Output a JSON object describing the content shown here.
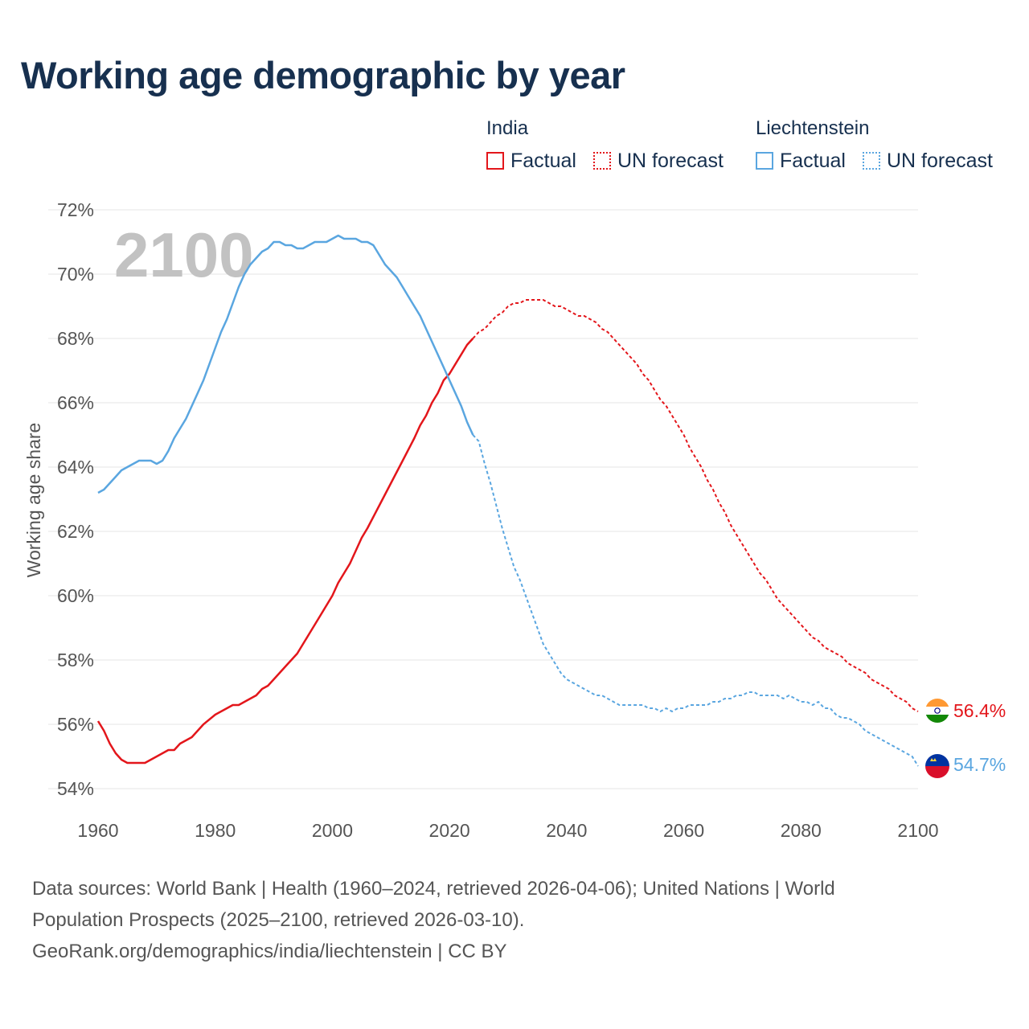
{
  "title": "Working age demographic by year",
  "legend": {
    "india": {
      "name": "India",
      "factual": "Factual",
      "forecast": "UN forecast"
    },
    "liechtenstein": {
      "name": "Liechtenstein",
      "factual": "Factual",
      "forecast": "UN forecast"
    }
  },
  "footer": {
    "line1": "Data sources: World Bank | Health (1960–2024, retrieved 2026-04-06); United Nations | World",
    "line2": "Population Prospects (2025–2100, retrieved 2026-03-10).",
    "line3": "GeoRank.org/demographics/india/liechtenstein | CC BY"
  },
  "colors": {
    "india": "#e3161b",
    "liechtenstein": "#5aa6e0",
    "grid": "#e6e6e6",
    "axis_text": "#555555",
    "year_label": "#c2c2c2"
  },
  "chart_data": {
    "type": "line",
    "title": "Working age demographic by year",
    "year_label": "2100",
    "xlabel": "",
    "ylabel": "Working age share",
    "xlim": [
      1960,
      2100
    ],
    "ylim": [
      54,
      72
    ],
    "x_ticks": [
      "1960",
      "1980",
      "2000",
      "2020",
      "2040",
      "2060",
      "2080",
      "2100"
    ],
    "y_ticks": [
      "54%",
      "56%",
      "58%",
      "60%",
      "62%",
      "64%",
      "66%",
      "68%",
      "70%",
      "72%"
    ],
    "forecast_start": 2024,
    "series": [
      {
        "name": "India",
        "end_label": "56.4%",
        "points": [
          [
            1960,
            56.1
          ],
          [
            1961,
            55.8
          ],
          [
            1962,
            55.4
          ],
          [
            1963,
            55.1
          ],
          [
            1964,
            54.9
          ],
          [
            1965,
            54.8
          ],
          [
            1966,
            54.8
          ],
          [
            1968,
            54.8
          ],
          [
            1970,
            55.0
          ],
          [
            1972,
            55.2
          ],
          [
            1973,
            55.2
          ],
          [
            1974,
            55.4
          ],
          [
            1976,
            55.6
          ],
          [
            1978,
            56.0
          ],
          [
            1980,
            56.3
          ],
          [
            1982,
            56.5
          ],
          [
            1983,
            56.6
          ],
          [
            1984,
            56.6
          ],
          [
            1986,
            56.8
          ],
          [
            1987,
            56.9
          ],
          [
            1988,
            57.1
          ],
          [
            1989,
            57.2
          ],
          [
            1990,
            57.4
          ],
          [
            1992,
            57.8
          ],
          [
            1994,
            58.2
          ],
          [
            1996,
            58.8
          ],
          [
            1998,
            59.4
          ],
          [
            2000,
            60.0
          ],
          [
            2001,
            60.4
          ],
          [
            2002,
            60.7
          ],
          [
            2003,
            61.0
          ],
          [
            2004,
            61.4
          ],
          [
            2005,
            61.8
          ],
          [
            2006,
            62.1
          ],
          [
            2008,
            62.8
          ],
          [
            2010,
            63.5
          ],
          [
            2012,
            64.2
          ],
          [
            2014,
            64.9
          ],
          [
            2015,
            65.3
          ],
          [
            2016,
            65.6
          ],
          [
            2017,
            66.0
          ],
          [
            2018,
            66.3
          ],
          [
            2019,
            66.7
          ],
          [
            2020,
            66.9
          ],
          [
            2021,
            67.2
          ],
          [
            2022,
            67.5
          ],
          [
            2023,
            67.8
          ],
          [
            2024,
            68.0
          ],
          [
            2025,
            68.2
          ],
          [
            2026,
            68.3
          ],
          [
            2027,
            68.5
          ],
          [
            2028,
            68.7
          ],
          [
            2029,
            68.8
          ],
          [
            2030,
            69.0
          ],
          [
            2031,
            69.1
          ],
          [
            2032,
            69.1
          ],
          [
            2033,
            69.2
          ],
          [
            2034,
            69.2
          ],
          [
            2035,
            69.2
          ],
          [
            2036,
            69.2
          ],
          [
            2037,
            69.1
          ],
          [
            2038,
            69.0
          ],
          [
            2039,
            69.0
          ],
          [
            2040,
            68.9
          ],
          [
            2041,
            68.8
          ],
          [
            2042,
            68.7
          ],
          [
            2043,
            68.7
          ],
          [
            2044,
            68.6
          ],
          [
            2045,
            68.5
          ],
          [
            2046,
            68.3
          ],
          [
            2047,
            68.2
          ],
          [
            2048,
            68.0
          ],
          [
            2049,
            67.8
          ],
          [
            2050,
            67.6
          ],
          [
            2051,
            67.4
          ],
          [
            2052,
            67.2
          ],
          [
            2053,
            66.9
          ],
          [
            2054,
            66.7
          ],
          [
            2055,
            66.4
          ],
          [
            2056,
            66.1
          ],
          [
            2057,
            65.9
          ],
          [
            2058,
            65.6
          ],
          [
            2059,
            65.3
          ],
          [
            2060,
            65.0
          ],
          [
            2061,
            64.6
          ],
          [
            2062,
            64.3
          ],
          [
            2063,
            64.0
          ],
          [
            2064,
            63.6
          ],
          [
            2065,
            63.3
          ],
          [
            2066,
            62.9
          ],
          [
            2067,
            62.6
          ],
          [
            2068,
            62.2
          ],
          [
            2069,
            61.9
          ],
          [
            2070,
            61.6
          ],
          [
            2071,
            61.3
          ],
          [
            2072,
            61.0
          ],
          [
            2073,
            60.7
          ],
          [
            2074,
            60.5
          ],
          [
            2075,
            60.2
          ],
          [
            2076,
            59.9
          ],
          [
            2077,
            59.7
          ],
          [
            2078,
            59.5
          ],
          [
            2079,
            59.3
          ],
          [
            2080,
            59.1
          ],
          [
            2081,
            58.9
          ],
          [
            2082,
            58.7
          ],
          [
            2083,
            58.6
          ],
          [
            2084,
            58.4
          ],
          [
            2085,
            58.3
          ],
          [
            2086,
            58.2
          ],
          [
            2087,
            58.1
          ],
          [
            2088,
            57.9
          ],
          [
            2089,
            57.8
          ],
          [
            2090,
            57.7
          ],
          [
            2091,
            57.6
          ],
          [
            2092,
            57.4
          ],
          [
            2093,
            57.3
          ],
          [
            2094,
            57.2
          ],
          [
            2095,
            57.1
          ],
          [
            2096,
            56.9
          ],
          [
            2097,
            56.8
          ],
          [
            2098,
            56.7
          ],
          [
            2099,
            56.5
          ],
          [
            2100,
            56.4
          ]
        ]
      },
      {
        "name": "Liechtenstein",
        "end_label": "54.7%",
        "points": [
          [
            1960,
            63.2
          ],
          [
            1961,
            63.3
          ],
          [
            1962,
            63.5
          ],
          [
            1963,
            63.7
          ],
          [
            1964,
            63.9
          ],
          [
            1965,
            64.0
          ],
          [
            1966,
            64.1
          ],
          [
            1967,
            64.2
          ],
          [
            1968,
            64.2
          ],
          [
            1969,
            64.2
          ],
          [
            1970,
            64.1
          ],
          [
            1971,
            64.2
          ],
          [
            1972,
            64.5
          ],
          [
            1973,
            64.9
          ],
          [
            1974,
            65.2
          ],
          [
            1975,
            65.5
          ],
          [
            1976,
            65.9
          ],
          [
            1977,
            66.3
          ],
          [
            1978,
            66.7
          ],
          [
            1979,
            67.2
          ],
          [
            1980,
            67.7
          ],
          [
            1981,
            68.2
          ],
          [
            1982,
            68.6
          ],
          [
            1983,
            69.1
          ],
          [
            1984,
            69.6
          ],
          [
            1985,
            70.0
          ],
          [
            1986,
            70.3
          ],
          [
            1987,
            70.5
          ],
          [
            1988,
            70.7
          ],
          [
            1989,
            70.8
          ],
          [
            1990,
            71.0
          ],
          [
            1991,
            71.0
          ],
          [
            1992,
            70.9
          ],
          [
            1993,
            70.9
          ],
          [
            1994,
            70.8
          ],
          [
            1995,
            70.8
          ],
          [
            1996,
            70.9
          ],
          [
            1997,
            71.0
          ],
          [
            1998,
            71.0
          ],
          [
            1999,
            71.0
          ],
          [
            2000,
            71.1
          ],
          [
            2001,
            71.2
          ],
          [
            2002,
            71.1
          ],
          [
            2003,
            71.1
          ],
          [
            2004,
            71.1
          ],
          [
            2005,
            71.0
          ],
          [
            2006,
            71.0
          ],
          [
            2007,
            70.9
          ],
          [
            2008,
            70.6
          ],
          [
            2009,
            70.3
          ],
          [
            2010,
            70.1
          ],
          [
            2011,
            69.9
          ],
          [
            2012,
            69.6
          ],
          [
            2013,
            69.3
          ],
          [
            2014,
            69.0
          ],
          [
            2015,
            68.7
          ],
          [
            2016,
            68.3
          ],
          [
            2017,
            67.9
          ],
          [
            2018,
            67.5
          ],
          [
            2019,
            67.1
          ],
          [
            2020,
            66.7
          ],
          [
            2021,
            66.3
          ],
          [
            2022,
            65.9
          ],
          [
            2023,
            65.4
          ],
          [
            2024,
            65.0
          ],
          [
            2025,
            64.8
          ],
          [
            2026,
            64.1
          ],
          [
            2027,
            63.5
          ],
          [
            2028,
            62.8
          ],
          [
            2029,
            62.1
          ],
          [
            2030,
            61.5
          ],
          [
            2031,
            60.9
          ],
          [
            2032,
            60.5
          ],
          [
            2033,
            60.0
          ],
          [
            2034,
            59.5
          ],
          [
            2035,
            59.0
          ],
          [
            2036,
            58.5
          ],
          [
            2037,
            58.2
          ],
          [
            2038,
            57.9
          ],
          [
            2039,
            57.6
          ],
          [
            2040,
            57.4
          ],
          [
            2041,
            57.3
          ],
          [
            2042,
            57.2
          ],
          [
            2043,
            57.1
          ],
          [
            2044,
            57.0
          ],
          [
            2045,
            56.9
          ],
          [
            2046,
            56.9
          ],
          [
            2047,
            56.8
          ],
          [
            2048,
            56.7
          ],
          [
            2049,
            56.6
          ],
          [
            2050,
            56.6
          ],
          [
            2051,
            56.6
          ],
          [
            2052,
            56.6
          ],
          [
            2053,
            56.6
          ],
          [
            2054,
            56.5
          ],
          [
            2055,
            56.5
          ],
          [
            2056,
            56.4
          ],
          [
            2057,
            56.5
          ],
          [
            2058,
            56.4
          ],
          [
            2059,
            56.5
          ],
          [
            2060,
            56.5
          ],
          [
            2061,
            56.6
          ],
          [
            2062,
            56.6
          ],
          [
            2063,
            56.6
          ],
          [
            2064,
            56.6
          ],
          [
            2065,
            56.7
          ],
          [
            2066,
            56.7
          ],
          [
            2067,
            56.8
          ],
          [
            2068,
            56.8
          ],
          [
            2069,
            56.9
          ],
          [
            2070,
            56.9
          ],
          [
            2071,
            57.0
          ],
          [
            2072,
            57.0
          ],
          [
            2073,
            56.9
          ],
          [
            2074,
            56.9
          ],
          [
            2075,
            56.9
          ],
          [
            2076,
            56.9
          ],
          [
            2077,
            56.8
          ],
          [
            2078,
            56.9
          ],
          [
            2079,
            56.8
          ],
          [
            2080,
            56.7
          ],
          [
            2081,
            56.7
          ],
          [
            2082,
            56.6
          ],
          [
            2083,
            56.7
          ],
          [
            2084,
            56.5
          ],
          [
            2085,
            56.5
          ],
          [
            2086,
            56.3
          ],
          [
            2087,
            56.2
          ],
          [
            2088,
            56.2
          ],
          [
            2089,
            56.1
          ],
          [
            2090,
            56.0
          ],
          [
            2091,
            55.8
          ],
          [
            2092,
            55.7
          ],
          [
            2093,
            55.6
          ],
          [
            2094,
            55.5
          ],
          [
            2095,
            55.4
          ],
          [
            2096,
            55.3
          ],
          [
            2097,
            55.2
          ],
          [
            2098,
            55.1
          ],
          [
            2099,
            55.0
          ],
          [
            2100,
            54.7
          ]
        ]
      }
    ]
  }
}
